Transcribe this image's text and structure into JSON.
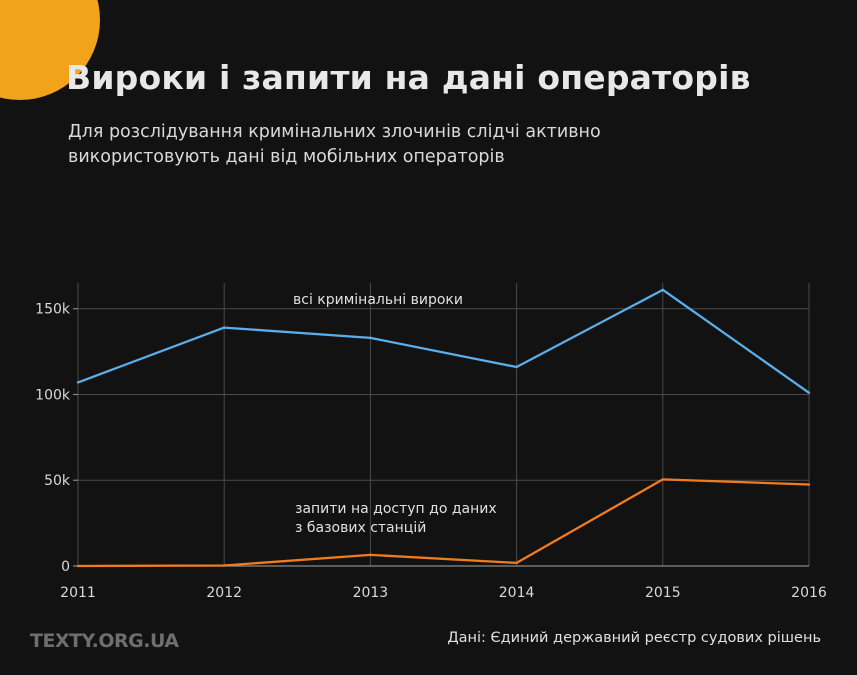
{
  "header": {
    "title": "Вироки і запити на дані операторів",
    "subtitle": "Для розслідування кримінальних злочинів слідчі активно використовують дані від мобільних операторів"
  },
  "footer": {
    "logo": "TEXTY.ORG.UA",
    "source": "Дані: Єдиний державний реєстр судових рішень"
  },
  "colors": {
    "accent": "#f2a31b",
    "series_verdicts": "#5aaeea",
    "series_requests": "#f07c1e"
  },
  "chart_data": {
    "type": "line",
    "x": [
      2011,
      2012,
      2013,
      2014,
      2015,
      2016
    ],
    "xlim": [
      2011,
      2016
    ],
    "ylim": [
      0,
      165000
    ],
    "yticks": [
      0,
      50000,
      100000,
      150000
    ],
    "ytick_labels": [
      "0",
      "50k",
      "100k",
      "150k"
    ],
    "xtick_labels": [
      "2011",
      "2012",
      "2013",
      "2014",
      "2015",
      "2016"
    ],
    "grid": true,
    "series": [
      {
        "name": "всі кримінальні вироки",
        "color": "#5aaeea",
        "values": [
          107000,
          139000,
          133000,
          116000,
          161000,
          101000
        ]
      },
      {
        "name": "запити на доступ до даних з базових станцій",
        "name_lines": [
          "запити на доступ до даних",
          "з базових станцій"
        ],
        "color": "#f07c1e",
        "values": [
          0,
          300,
          6500,
          1800,
          50500,
          47500
        ]
      }
    ]
  }
}
